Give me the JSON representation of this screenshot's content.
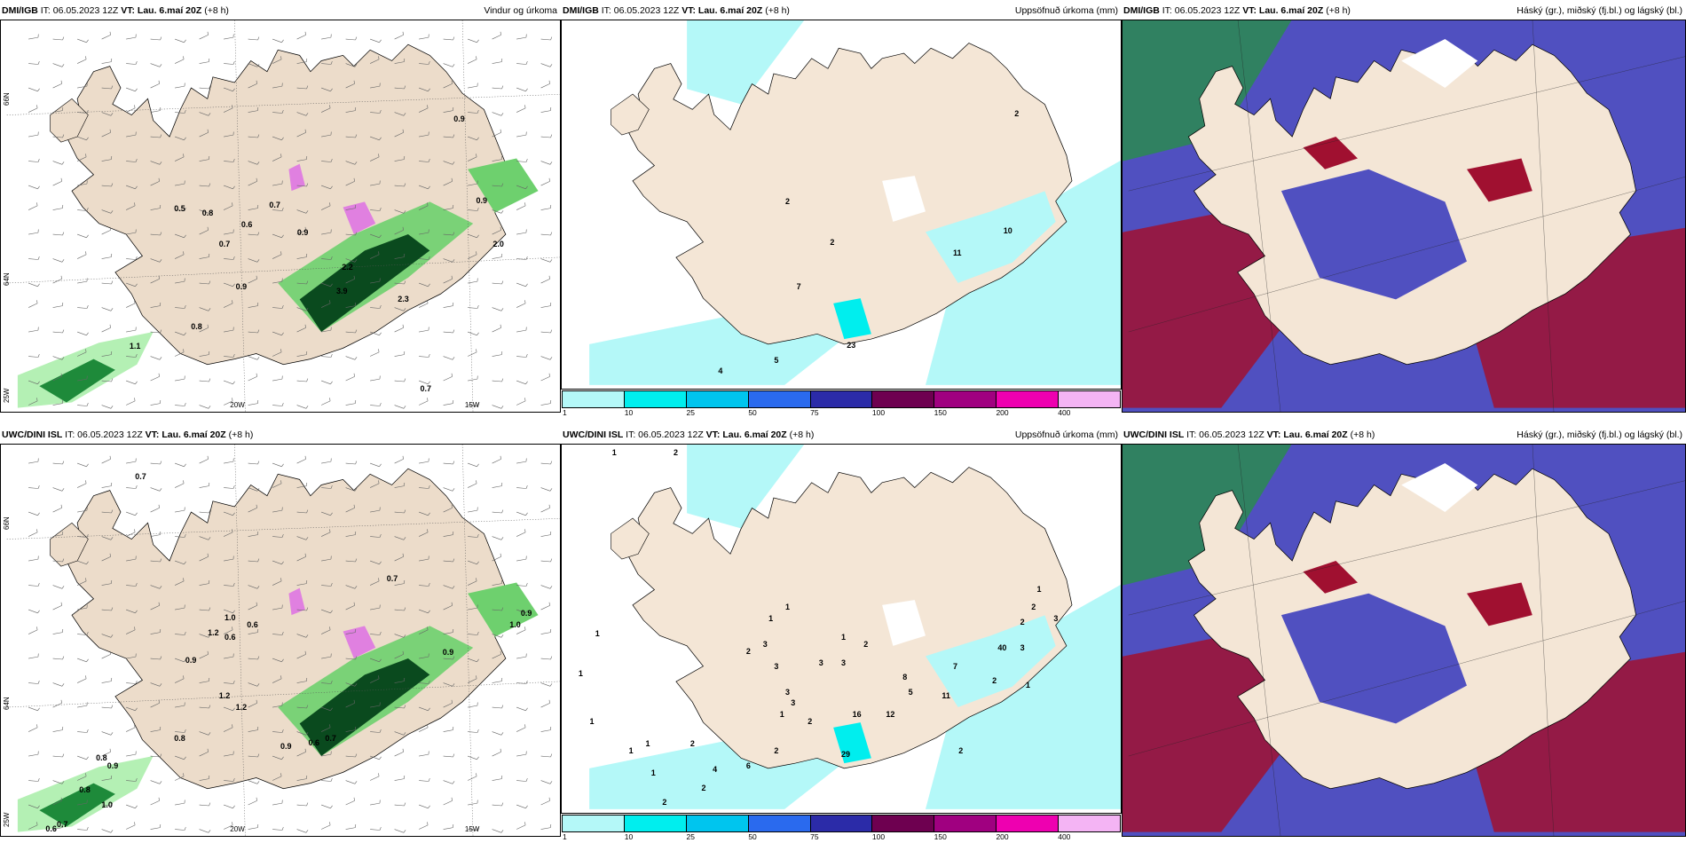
{
  "panels": [
    {
      "type": "wind",
      "title_bold": "DMI/IGB",
      "title_it": " IT: 06.05.2023 12Z ",
      "title_vt_label": "VT:",
      "title_vt": " Lau. 6.maí 20Z",
      "title_lead": " (+8 h)",
      "title_right": "Vindur og úrkoma",
      "lon_labels": [
        "20W",
        "15W"
      ],
      "lat_labels": [
        "66N",
        "64N",
        "25W"
      ],
      "values": [
        {
          "t": "0.5",
          "x": 0.31,
          "y": 0.47
        },
        {
          "t": "0.8",
          "x": 0.36,
          "y": 0.48
        },
        {
          "t": "0.7",
          "x": 0.39,
          "y": 0.56
        },
        {
          "t": "0.6",
          "x": 0.43,
          "y": 0.51
        },
        {
          "t": "0.7",
          "x": 0.48,
          "y": 0.46
        },
        {
          "t": "0.9",
          "x": 0.53,
          "y": 0.53
        },
        {
          "t": "0.9",
          "x": 0.42,
          "y": 0.67
        },
        {
          "t": "0.9",
          "x": 0.81,
          "y": 0.24
        },
        {
          "t": "0.9",
          "x": 0.85,
          "y": 0.45
        },
        {
          "t": "2.0",
          "x": 0.88,
          "y": 0.56
        },
        {
          "t": "0.8",
          "x": 0.34,
          "y": 0.77
        },
        {
          "t": "1.1",
          "x": 0.23,
          "y": 0.82
        },
        {
          "t": "0.7",
          "x": 0.75,
          "y": 0.93
        },
        {
          "t": "2.2",
          "x": 0.61,
          "y": 0.62
        },
        {
          "t": "3.9",
          "x": 0.6,
          "y": 0.68
        },
        {
          "t": "2.3",
          "x": 0.71,
          "y": 0.7
        }
      ]
    },
    {
      "type": "precip",
      "title_bold": "DMI/IGB",
      "title_it": " IT: 06.05.2023 12Z ",
      "title_vt_label": "VT:",
      "title_vt": " Lau. 6.maí 20Z",
      "title_lead": " (+8 h)",
      "title_right": "Uppsöfnuð úrkoma (mm)",
      "colorbar": {
        "ticks": [
          "1",
          "10",
          "25",
          "50",
          "75",
          "100",
          "150",
          "200",
          "400"
        ],
        "colors": [
          "#b4f8f8",
          "#00eeee",
          "#00c5ee",
          "#2a6aee",
          "#2b2ba8",
          "#6e0050",
          "#a00080",
          "#ee00b0",
          "#f4b4f4"
        ]
      },
      "values": [
        {
          "t": "2",
          "x": 0.81,
          "y": 0.24
        },
        {
          "t": "2",
          "x": 0.4,
          "y": 0.48
        },
        {
          "t": "2",
          "x": 0.48,
          "y": 0.59
        },
        {
          "t": "7",
          "x": 0.42,
          "y": 0.71
        },
        {
          "t": "11",
          "x": 0.7,
          "y": 0.62
        },
        {
          "t": "10",
          "x": 0.79,
          "y": 0.56
        },
        {
          "t": "23",
          "x": 0.51,
          "y": 0.87
        },
        {
          "t": "5",
          "x": 0.38,
          "y": 0.91
        },
        {
          "t": "4",
          "x": 0.28,
          "y": 0.94
        }
      ]
    },
    {
      "type": "cloud",
      "title_bold": "DMI/IGB",
      "title_it": " IT: 06.05.2023 12Z ",
      "title_vt_label": "VT:",
      "title_vt": " Lau. 6.maí 20Z",
      "title_lead": " (+8 h)",
      "title_right": "Háský (gr.), miðský (fj.bl.) og lágský (bl.)"
    },
    {
      "type": "wind",
      "title_bold": "UWC/DINI ISL",
      "title_it": " IT: 06.05.2023 12Z ",
      "title_vt_label": "VT:",
      "title_vt": " Lau. 6.maí 20Z",
      "title_lead": " (+8 h)",
      "title_right": "",
      "lon_labels": [
        "20W",
        "15W"
      ],
      "lat_labels": [
        "66N",
        "64N",
        "25W"
      ],
      "values": [
        {
          "t": "0.7",
          "x": 0.24,
          "y": 0.07
        },
        {
          "t": "0.7",
          "x": 0.69,
          "y": 0.33
        },
        {
          "t": "1.0",
          "x": 0.4,
          "y": 0.43
        },
        {
          "t": "0.6",
          "x": 0.44,
          "y": 0.45
        },
        {
          "t": "1.2",
          "x": 0.37,
          "y": 0.47
        },
        {
          "t": "0.6",
          "x": 0.4,
          "y": 0.48
        },
        {
          "t": "0.9",
          "x": 0.33,
          "y": 0.54
        },
        {
          "t": "1.2",
          "x": 0.39,
          "y": 0.63
        },
        {
          "t": "1.2",
          "x": 0.42,
          "y": 0.66
        },
        {
          "t": "0.8",
          "x": 0.31,
          "y": 0.74
        },
        {
          "t": "0.9",
          "x": 0.5,
          "y": 0.76
        },
        {
          "t": "0.6",
          "x": 0.55,
          "y": 0.75
        },
        {
          "t": "0.7",
          "x": 0.58,
          "y": 0.74
        },
        {
          "t": "0.9",
          "x": 0.79,
          "y": 0.52
        },
        {
          "t": "1.0",
          "x": 0.91,
          "y": 0.45
        },
        {
          "t": "0.9",
          "x": 0.93,
          "y": 0.42
        },
        {
          "t": "0.8",
          "x": 0.17,
          "y": 0.79
        },
        {
          "t": "0.9",
          "x": 0.19,
          "y": 0.81
        },
        {
          "t": "0.8",
          "x": 0.14,
          "y": 0.87
        },
        {
          "t": "1.0",
          "x": 0.18,
          "y": 0.91
        },
        {
          "t": "0.6",
          "x": 0.08,
          "y": 0.97
        },
        {
          "t": "0.7",
          "x": 0.1,
          "y": 0.96
        }
      ]
    },
    {
      "type": "precip",
      "title_bold": "UWC/DINI ISL",
      "title_it": " IT: 06.05.2023 12Z ",
      "title_vt_label": "VT:",
      "title_vt": " Lau. 6.maí 20Z",
      "title_lead": " (+8 h)",
      "title_right": "Uppsöfnuð úrkoma (mm)",
      "colorbar": {
        "ticks": [
          "1",
          "10",
          "25",
          "50",
          "75",
          "100",
          "150",
          "200",
          "400"
        ],
        "colors": [
          "#b4f8f8",
          "#00eeee",
          "#00c5ee",
          "#2a6aee",
          "#2b2ba8",
          "#6e0050",
          "#a00080",
          "#ee00b0",
          "#f4b4f4"
        ]
      },
      "values": [
        {
          "t": "1",
          "x": 0.09,
          "y": 0.01
        },
        {
          "t": "2",
          "x": 0.2,
          "y": 0.01
        },
        {
          "t": "1",
          "x": 0.06,
          "y": 0.5
        },
        {
          "t": "1",
          "x": 0.03,
          "y": 0.61
        },
        {
          "t": "1",
          "x": 0.05,
          "y": 0.74
        },
        {
          "t": "1",
          "x": 0.37,
          "y": 0.46
        },
        {
          "t": "1",
          "x": 0.4,
          "y": 0.43
        },
        {
          "t": "1",
          "x": 0.5,
          "y": 0.51
        },
        {
          "t": "2",
          "x": 0.54,
          "y": 0.53
        },
        {
          "t": "3",
          "x": 0.36,
          "y": 0.53
        },
        {
          "t": "3",
          "x": 0.46,
          "y": 0.58
        },
        {
          "t": "3",
          "x": 0.5,
          "y": 0.58
        },
        {
          "t": "2",
          "x": 0.33,
          "y": 0.55
        },
        {
          "t": "3",
          "x": 0.38,
          "y": 0.59
        },
        {
          "t": "3",
          "x": 0.4,
          "y": 0.66
        },
        {
          "t": "3",
          "x": 0.41,
          "y": 0.69
        },
        {
          "t": "16",
          "x": 0.52,
          "y": 0.72
        },
        {
          "t": "12",
          "x": 0.58,
          "y": 0.72
        },
        {
          "t": "5",
          "x": 0.62,
          "y": 0.66
        },
        {
          "t": "8",
          "x": 0.61,
          "y": 0.62
        },
        {
          "t": "7",
          "x": 0.7,
          "y": 0.59
        },
        {
          "t": "11",
          "x": 0.68,
          "y": 0.67
        },
        {
          "t": "2",
          "x": 0.77,
          "y": 0.63
        },
        {
          "t": "1",
          "x": 0.83,
          "y": 0.64
        },
        {
          "t": "40",
          "x": 0.78,
          "y": 0.54
        },
        {
          "t": "3",
          "x": 0.82,
          "y": 0.54
        },
        {
          "t": "2",
          "x": 0.82,
          "y": 0.47
        },
        {
          "t": "1",
          "x": 0.85,
          "y": 0.38
        },
        {
          "t": "3",
          "x": 0.88,
          "y": 0.46
        },
        {
          "t": "2",
          "x": 0.84,
          "y": 0.43
        },
        {
          "t": "1",
          "x": 0.39,
          "y": 0.72
        },
        {
          "t": "2",
          "x": 0.44,
          "y": 0.74
        },
        {
          "t": "2",
          "x": 0.38,
          "y": 0.82
        },
        {
          "t": "2",
          "x": 0.23,
          "y": 0.8
        },
        {
          "t": "4",
          "x": 0.27,
          "y": 0.87
        },
        {
          "t": "6",
          "x": 0.33,
          "y": 0.86
        },
        {
          "t": "2",
          "x": 0.25,
          "y": 0.92
        },
        {
          "t": "2",
          "x": 0.18,
          "y": 0.96
        },
        {
          "t": "1",
          "x": 0.16,
          "y": 0.88
        },
        {
          "t": "1",
          "x": 0.12,
          "y": 0.82
        },
        {
          "t": "1",
          "x": 0.15,
          "y": 0.8
        },
        {
          "t": "29",
          "x": 0.5,
          "y": 0.83
        },
        {
          "t": "2",
          "x": 0.71,
          "y": 0.82
        }
      ]
    },
    {
      "type": "cloud",
      "title_bold": "UWC/DINI ISL",
      "title_it": " IT: 06.05.2023 12Z ",
      "title_vt_label": "VT:",
      "title_vt": " Lau. 6.maí 20Z",
      "title_lead": " (+8 h)",
      "title_right": "Háský (gr.), miðský (fj.bl.) og lágský (bl.)"
    }
  ],
  "colors": {
    "land": "#f4e6d6",
    "wind_land": "#ecdcca",
    "green1": "#b4f0b4",
    "green2": "#6ed06e",
    "green3": "#1e8a3a",
    "green4": "#0a4a1e",
    "magenta": "#e080e0",
    "cyan1": "#b4f8f8",
    "cyan2": "#00eeee",
    "cloudlow": "#5050c0",
    "cloudmid": "#a01030",
    "cloudhigh": "#2a8a50"
  }
}
